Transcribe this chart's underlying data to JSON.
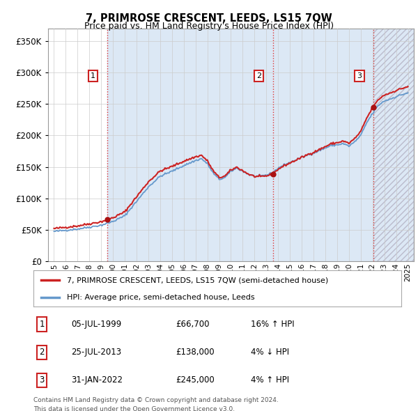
{
  "title": "7, PRIMROSE CRESCENT, LEEDS, LS15 7QW",
  "subtitle": "Price paid vs. HM Land Registry's House Price Index (HPI)",
  "hpi_label": "HPI: Average price, semi-detached house, Leeds",
  "property_label": "7, PRIMROSE CRESCENT, LEEDS, LS15 7QW (semi-detached house)",
  "footer_line1": "Contains HM Land Registry data © Crown copyright and database right 2024.",
  "footer_line2": "This data is licensed under the Open Government Licence v3.0.",
  "sales": [
    {
      "num": 1,
      "date": "05-JUL-1999",
      "price": 66700,
      "x": 1999.51,
      "pct": "16%",
      "dir": "↑"
    },
    {
      "num": 2,
      "date": "25-JUL-2013",
      "price": 138000,
      "x": 2013.56,
      "pct": "4%",
      "dir": "↓"
    },
    {
      "num": 3,
      "date": "31-JAN-2022",
      "price": 245000,
      "x": 2022.08,
      "pct": "4%",
      "dir": "↑"
    }
  ],
  "vline_color": "#dd3333",
  "vline_style": ":",
  "hpi_line_color": "#6699cc",
  "price_line_color": "#cc2222",
  "dot_color": "#aa1111",
  "shade_color": "#dce8f5",
  "xlim": [
    1994.5,
    2025.5
  ],
  "ylim": [
    0,
    370000
  ],
  "yticks": [
    0,
    50000,
    100000,
    150000,
    200000,
    250000,
    300000,
    350000
  ],
  "xticks": [
    1995,
    1996,
    1997,
    1998,
    1999,
    2000,
    2001,
    2002,
    2003,
    2004,
    2005,
    2006,
    2007,
    2008,
    2009,
    2010,
    2011,
    2012,
    2013,
    2014,
    2015,
    2016,
    2017,
    2018,
    2019,
    2020,
    2021,
    2022,
    2023,
    2024,
    2025
  ],
  "background_color": "#ffffff",
  "plot_bg_color": "#ffffff",
  "grid_color": "#cccccc"
}
